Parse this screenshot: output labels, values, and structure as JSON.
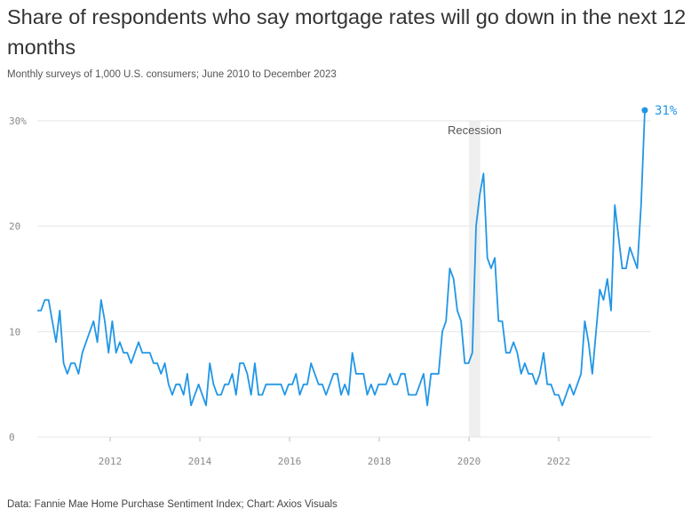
{
  "title": "Share of respondents who say mortgage rates will go down in the next 12 months",
  "subtitle": "Monthly surveys of 1,000 U.S. consumers; June 2010 to December 2023",
  "footer": "Data: Fannie Mae Home Purchase Sentiment Index; Chart: Axios Visuals",
  "colors": {
    "line": "#2196e6",
    "grid": "#e6e6e6",
    "recession": "#efefef"
  },
  "chart_data": {
    "type": "line",
    "title": "Share of respondents who say mortgage rates will go down in the next 12 months",
    "subtitle": "Monthly surveys of 1,000 U.S. consumers; June 2010 to December 2023",
    "xlabel": "",
    "ylabel": "",
    "xlim": [
      2010.375,
      2023.96
    ],
    "ylim": [
      0,
      31
    ],
    "grid": true,
    "y_ticks": [
      0,
      10,
      20,
      30
    ],
    "y_tick_labels": [
      "0",
      "10",
      "20",
      "30%"
    ],
    "x_ticks": [
      2012,
      2014,
      2016,
      2018,
      2020,
      2022
    ],
    "x_tick_labels": [
      "2012",
      "2014",
      "2016",
      "2018",
      "2020",
      "2022"
    ],
    "start": "June 2010",
    "end": "December 2023",
    "annotations": [
      {
        "text": "Recession",
        "x_start": 2020.0,
        "x_end": 2020.25
      }
    ],
    "end_label": "31%",
    "series": [
      {
        "values": [
          12,
          12,
          13,
          13,
          11,
          9,
          12,
          7,
          6,
          7,
          7,
          6,
          8,
          9,
          10,
          11,
          9,
          13,
          11,
          8,
          11,
          8,
          9,
          8,
          8,
          7,
          8,
          9,
          8,
          8,
          8,
          7,
          7,
          6,
          7,
          5,
          4,
          5,
          5,
          4,
          6,
          3,
          4,
          5,
          4,
          3,
          7,
          5,
          4,
          4,
          5,
          5,
          6,
          4,
          7,
          7,
          6,
          4,
          7,
          4,
          4,
          5,
          5,
          5,
          5,
          5,
          4,
          5,
          5,
          6,
          4,
          5,
          5,
          7,
          6,
          5,
          5,
          4,
          5,
          6,
          6,
          4,
          5,
          4,
          8,
          6,
          6,
          6,
          4,
          5,
          4,
          5,
          5,
          5,
          6,
          5,
          5,
          6,
          6,
          4,
          4,
          4,
          5,
          6,
          3,
          6,
          6,
          6,
          10,
          11,
          16,
          15,
          12,
          11,
          7,
          7,
          8,
          20,
          23,
          25,
          17,
          16,
          17,
          11,
          11,
          8,
          8,
          9,
          8,
          6,
          7,
          6,
          6,
          5,
          6,
          8,
          5,
          5,
          4,
          4,
          3,
          4,
          5,
          4,
          5,
          6,
          11,
          9,
          6,
          10,
          14,
          13,
          15,
          12,
          22,
          19,
          16,
          16,
          18,
          17,
          16,
          22,
          31
        ]
      }
    ]
  }
}
